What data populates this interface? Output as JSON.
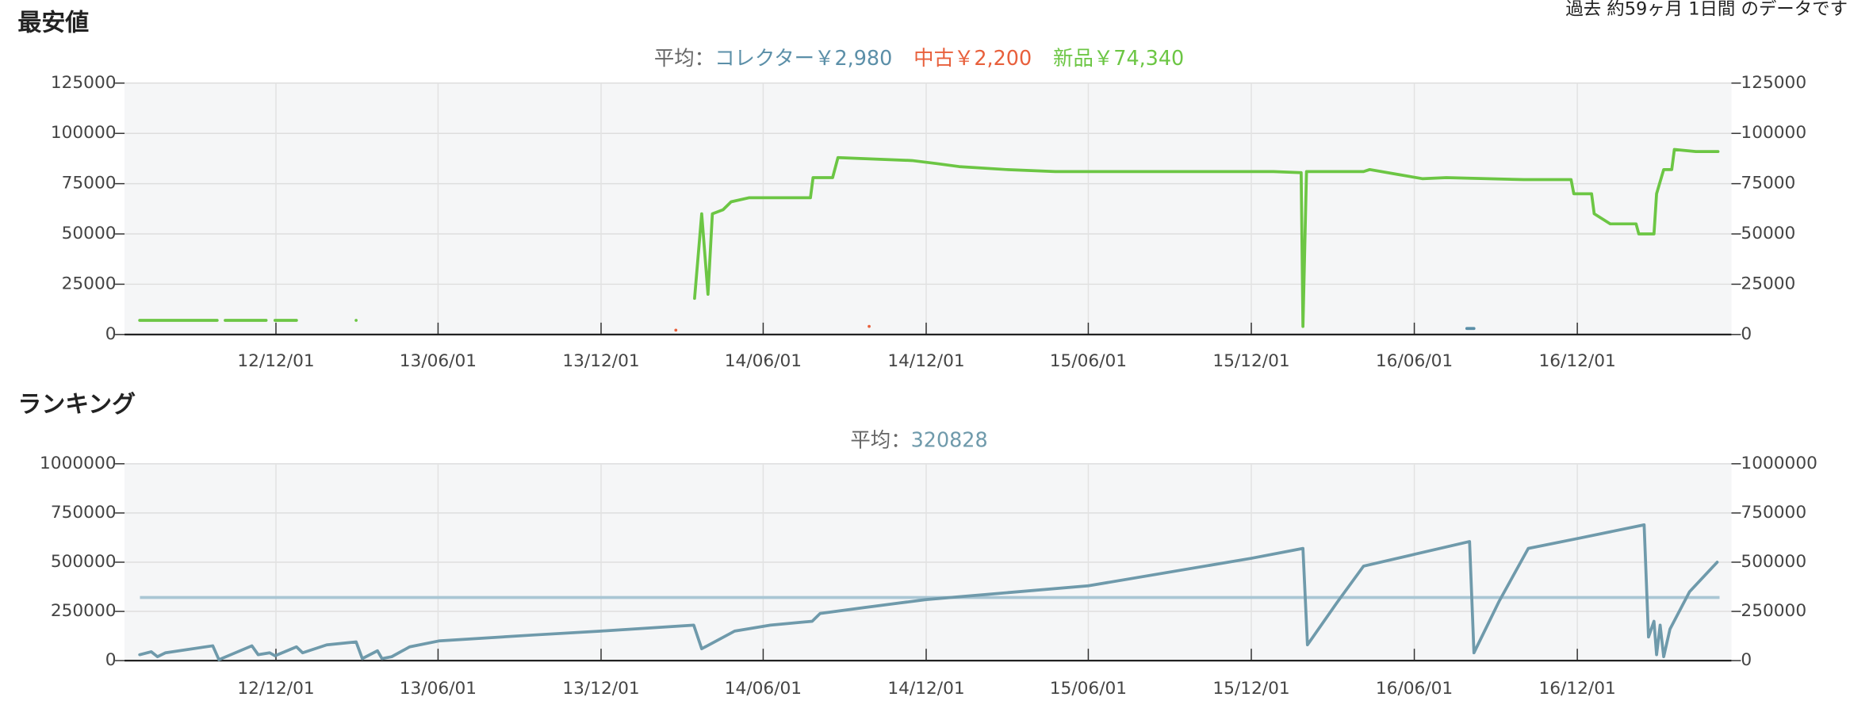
{
  "note": "過去 約59ヶ月 1日間 のデータです",
  "chart_data": [
    {
      "type": "line",
      "title": "最安値",
      "average_prefix": "平均：",
      "xlim": [
        "12/06/14",
        "17/05/23"
      ],
      "xticks": [
        "12/12/01",
        "13/06/01",
        "13/12/01",
        "14/06/01",
        "14/12/01",
        "15/06/01",
        "15/12/01",
        "16/06/01",
        "16/12/01"
      ],
      "ylim": [
        0,
        125000
      ],
      "yticks": [
        0,
        25000,
        50000,
        75000,
        100000,
        125000
      ],
      "grid": true,
      "series": [
        {
          "name": "コレクター",
          "color": "#5b8fa8",
          "average": {
            "value": 2980,
            "label": "￥2,980"
          },
          "x": [
            "16/07/30",
            "16/08/07"
          ],
          "values": [
            3000,
            3000
          ]
        },
        {
          "name": "中古",
          "color": "#e8603c",
          "average": {
            "value": 2200,
            "label": "￥2,200"
          },
          "x": [
            "14/02/23",
            null,
            "14/09/28"
          ],
          "values": [
            2200,
            null,
            4000
          ]
        },
        {
          "name": "新品",
          "color": "#6cc644",
          "average": {
            "value": 74340,
            "label": "￥74,340"
          },
          "x": [
            "12/07/01",
            "12/09/26",
            null,
            "12/10/05",
            "12/11/20",
            null,
            "12/11/30",
            "12/12/24",
            null,
            "13/03/01",
            null,
            "14/03/16",
            "14/03/24",
            "14/03/31",
            "14/04/05",
            "14/04/17",
            "14/04/26",
            "14/05/16",
            "14/07/24",
            "14/07/27",
            "14/08/18",
            "14/08/24",
            "14/09/18",
            "14/11/15",
            "14/12/12",
            "15/01/07",
            "15/03/01",
            "15/04/25",
            "15/12/26",
            "16/01/26",
            "16/01/28",
            "16/02/01",
            "16/04/05",
            "16/04/12",
            "16/05/15",
            "16/06/10",
            "16/07/07",
            "16/10/02",
            "16/11/24",
            "16/11/27",
            "16/12/17",
            "16/12/20",
            "17/01/07",
            "17/02/05",
            "17/02/08",
            "17/02/25",
            "17/02/28",
            "17/03/08",
            "17/03/17",
            "17/03/20",
            "17/04/13",
            "17/05/08"
          ],
          "values": [
            7000,
            7000,
            null,
            7000,
            7000,
            null,
            7000,
            7000,
            null,
            7000,
            null,
            18000,
            60000,
            20000,
            60000,
            62000,
            66000,
            68000,
            68000,
            78000,
            78000,
            88000,
            87500,
            86500,
            85000,
            83500,
            82000,
            81000,
            81000,
            80500,
            4000,
            81000,
            81000,
            82000,
            79500,
            77500,
            78000,
            77000,
            77000,
            70000,
            70000,
            60000,
            55000,
            55000,
            50000,
            50000,
            70000,
            82000,
            82000,
            92000,
            91000,
            91000
          ]
        }
      ]
    },
    {
      "type": "line",
      "title": "ランキング",
      "average_prefix": "平均：",
      "average": 320828,
      "average_color": "#a9c6d4",
      "xlim": [
        "12/06/14",
        "17/05/23"
      ],
      "xticks": [
        "12/12/01",
        "13/06/01",
        "13/12/01",
        "14/06/01",
        "14/12/01",
        "15/06/01",
        "15/12/01",
        "16/06/01",
        "16/12/01"
      ],
      "ylim": [
        0,
        1000000
      ],
      "yticks": [
        0,
        250000,
        500000,
        750000,
        1000000
      ],
      "grid": true,
      "series": [
        {
          "color": "#6f9aab",
          "x": [
            "12/07/01",
            "12/07/14",
            "12/07/21",
            "12/07/30",
            "12/09/21",
            "12/09/28",
            "12/11/04",
            "12/11/11",
            "12/11/24",
            "12/11/30",
            "12/12/24",
            "12/12/31",
            "13/01/27",
            "13/03/01",
            "13/03/08",
            "13/03/25",
            "13/03/30",
            "13/04/10",
            "13/04/30",
            "13/06/02",
            "13/09/16",
            "13/12/01",
            "14/03/15",
            "14/03/24",
            "14/04/30",
            "14/06/09",
            "14/07/26",
            "14/08/04",
            "14/09/23",
            "14/12/01",
            "15/06/01",
            "15/12/01",
            "16/01/28",
            "16/02/02",
            "16/03/07",
            "16/04/05",
            "16/06/01",
            "16/08/02",
            "16/08/07",
            "16/09/04",
            "16/10/07",
            "16/12/01",
            "17/02/14",
            "17/02/19",
            "17/02/25",
            "17/02/28",
            "17/03/04",
            "17/03/08",
            "17/03/15",
            "17/04/06",
            "17/05/07"
          ],
          "values": [
            30000,
            45000,
            20000,
            40000,
            75000,
            5000,
            75000,
            30000,
            40000,
            25000,
            70000,
            40000,
            80000,
            95000,
            10000,
            50000,
            10000,
            20000,
            70000,
            100000,
            130000,
            150000,
            180000,
            60000,
            150000,
            180000,
            200000,
            240000,
            270000,
            310000,
            380000,
            520000,
            570000,
            80000,
            300000,
            480000,
            540000,
            605000,
            40000,
            300000,
            570000,
            620000,
            690000,
            120000,
            200000,
            30000,
            180000,
            20000,
            160000,
            350000,
            500000
          ]
        }
      ]
    }
  ]
}
